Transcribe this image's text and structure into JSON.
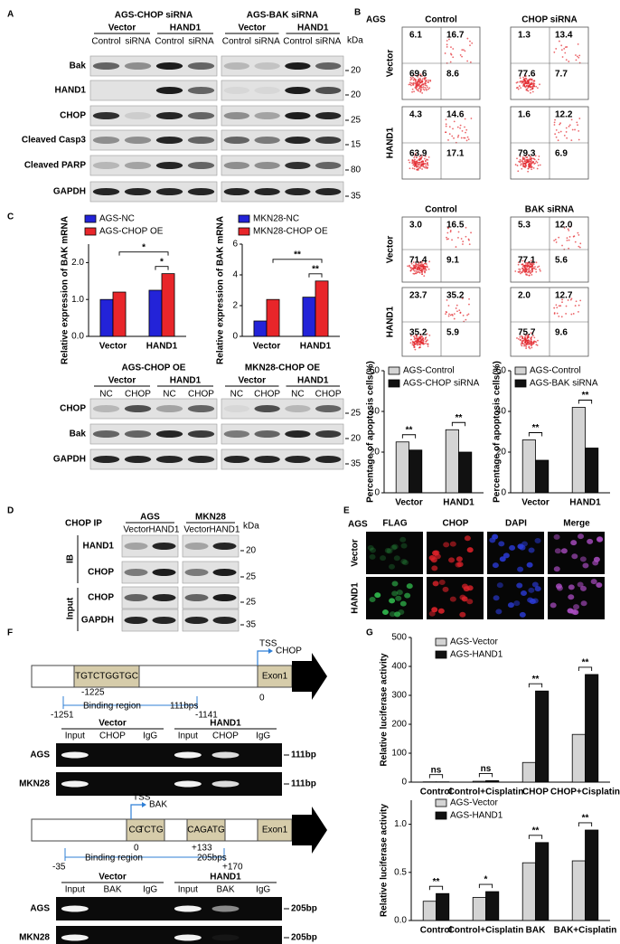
{
  "panel_a": {
    "letter": "A",
    "groups": [
      {
        "title": "AGS-CHOP siRNA",
        "conditions": [
          "Vector",
          "HAND1"
        ],
        "lanes": [
          "Control",
          "siRNA",
          "Control",
          "siRNA"
        ]
      },
      {
        "title": "AGS-BAK siRNA",
        "conditions": [
          "Vector",
          "HAND1"
        ],
        "lanes": [
          "Control",
          "siRNA",
          "Control",
          "siRNA"
        ]
      }
    ],
    "rows": [
      "Bak",
      "HAND1",
      "CHOP",
      "Cleaved Casp3",
      "Cleaved PARP",
      "GAPDH"
    ],
    "unit": "kDa",
    "markers": [
      20,
      20,
      25,
      15,
      80,
      35
    ]
  },
  "panel_b": {
    "letter": "B",
    "cell": "AGS",
    "blocks": [
      {
        "columns": [
          "Control",
          "CHOP siRNA"
        ],
        "rows": [
          "Vector",
          "HAND1"
        ],
        "plots": [
          [
            [
              "6.1",
              "16.7",
              "69.6",
              "8.6"
            ],
            [
              "1.3",
              "13.4",
              "77.6",
              "7.7"
            ]
          ],
          [
            [
              "4.3",
              "14.6",
              "63.9",
              "17.1"
            ],
            [
              "1.6",
              "12.2",
              "79.3",
              "6.9"
            ]
          ]
        ]
      },
      {
        "columns": [
          "Control",
          "BAK siRNA"
        ],
        "rows": [
          "Vector",
          "HAND1"
        ],
        "plots": [
          [
            [
              "3.0",
              "16.5",
              "71.4",
              "9.1"
            ],
            [
              "5.3",
              "12.0",
              "77.1",
              "5.6"
            ]
          ],
          [
            [
              "23.7",
              "35.2",
              "35.2",
              "5.9"
            ],
            [
              "2.0",
              "12.7",
              "75.7",
              "9.6"
            ]
          ]
        ]
      }
    ]
  },
  "panel_c": {
    "letter": "C",
    "blot": {
      "groups": [
        {
          "title": "AGS-CHOP OE",
          "conditions": [
            "Vector",
            "HAND1"
          ],
          "lanes": [
            "NC",
            "CHOP",
            "NC",
            "CHOP"
          ]
        },
        {
          "title": "MKN28-CHOP OE",
          "conditions": [
            "Vector",
            "HAND1"
          ],
          "lanes": [
            "NC",
            "CHOP",
            "NC",
            "CHOP"
          ]
        }
      ],
      "rows": [
        "CHOP",
        "Bak",
        "GAPDH"
      ],
      "markers": [
        25,
        20,
        35
      ]
    }
  },
  "panel_d": {
    "letter": "D",
    "ip": "CHOP IP",
    "groups": [
      {
        "title": "AGS",
        "lanes": [
          "Vector",
          "HAND1"
        ]
      },
      {
        "title": "MKN28",
        "lanes": [
          "Vector",
          "HAND1"
        ]
      }
    ],
    "unit": "kDa",
    "sections": [
      "IB",
      "Input"
    ],
    "rows": [
      "HAND1",
      "CHOP",
      "CHOP",
      "GAPDH"
    ],
    "markers": [
      20,
      25,
      25,
      35
    ]
  },
  "panel_e": {
    "letter": "E",
    "cell": "AGS",
    "channels": [
      "FLAG",
      "CHOP",
      "DAPI",
      "Merge"
    ],
    "rows": [
      "Vector",
      "HAND1"
    ]
  },
  "panel_f": {
    "letter": "F",
    "chop": {
      "sequence": "TGTCTGGTGC",
      "seq_pos": -1225,
      "tss": "TSS",
      "gene": "CHOP",
      "exon": "Exon1",
      "tss_pos": 0,
      "region": "Binding region",
      "size": "111bps",
      "start": -1251,
      "end": -1141,
      "gel": {
        "conditions": [
          "Vector",
          "HAND1"
        ],
        "lanes": [
          "Input",
          "CHOP",
          "IgG",
          "Input",
          "CHOP",
          "IgG"
        ],
        "rows": [
          "AGS",
          "MKN28"
        ],
        "bands": [
          "111bp",
          "111bp"
        ]
      }
    },
    "bak": {
      "tss": "TSS",
      "gene": "BAK",
      "seq1_highlight": "CG",
      "seq1_rest": "TCTG",
      "sequence2": "CAGATG",
      "tss_pos": 0,
      "seq2_pos": "+133",
      "exon": "Exon1",
      "start": -35,
      "region": "Binding region",
      "size": "205bps",
      "end": "+170",
      "gel": {
        "conditions": [
          "Vector",
          "HAND1"
        ],
        "lanes": [
          "Input",
          "BAK",
          "IgG",
          "Input",
          "BAK",
          "IgG"
        ],
        "rows": [
          "AGS",
          "MKN28"
        ],
        "bands": [
          "205bp",
          "205bp"
        ]
      }
    }
  },
  "panel_g": {
    "letter": "G"
  },
  "chart_data": [
    {
      "type": "bar",
      "y_label": "Percentage of apoptosis cells(%)",
      "categories": [
        "Vector",
        "HAND1"
      ],
      "series": [
        {
          "name": "AGS-Control",
          "color": "#d4d4d4",
          "values": [
            25,
            31
          ]
        },
        {
          "name": "AGS-CHOP siRNA",
          "color": "#111111",
          "values": [
            21,
            20
          ]
        }
      ],
      "ylim": [
        0,
        60
      ],
      "yticks": [
        0,
        20,
        40,
        60
      ],
      "annotations": [
        "**",
        "**"
      ]
    },
    {
      "type": "bar",
      "y_label": "Percentage of apoptosis cells(%)",
      "categories": [
        "Vector",
        "HAND1"
      ],
      "series": [
        {
          "name": "AGS-Control",
          "color": "#d4d4d4",
          "values": [
            26,
            42
          ]
        },
        {
          "name": "AGS-BAK siRNA",
          "color": "#111111",
          "values": [
            16,
            22
          ]
        }
      ],
      "ylim": [
        0,
        60
      ],
      "yticks": [
        0,
        20,
        40,
        60
      ],
      "annotations": [
        "**",
        "**"
      ]
    },
    {
      "type": "bar",
      "y_label": "Relative expression of BAK mRNA",
      "categories": [
        "Vector",
        "HAND1"
      ],
      "series": [
        {
          "name": "AGS-NC",
          "color": "#2323d8",
          "values": [
            1.0,
            1.25
          ]
        },
        {
          "name": "AGS-CHOP OE",
          "color": "#e8262a",
          "values": [
            1.2,
            1.7
          ]
        }
      ],
      "ylim": [
        0,
        2.5
      ],
      "yticks": [
        {
          "value": 0,
          "label": "0.0"
        },
        {
          "value": 1,
          "label": "1.0"
        },
        {
          "value": 2,
          "label": "2.0"
        }
      ],
      "annotations": [
        "*",
        "*"
      ]
    },
    {
      "type": "bar",
      "y_label": "Relative expression of BAK mRNA",
      "categories": [
        "Vector",
        "HAND1"
      ],
      "series": [
        {
          "name": "MKN28-NC",
          "color": "#2323d8",
          "values": [
            1.0,
            2.55
          ]
        },
        {
          "name": "MKN28-CHOP OE",
          "color": "#e8262a",
          "values": [
            2.4,
            3.6
          ]
        }
      ],
      "ylim": [
        0,
        6
      ],
      "yticks": [
        0,
        2,
        4,
        6
      ],
      "annotations": [
        "**",
        "**"
      ]
    },
    {
      "type": "bar",
      "y_label": "Relative luciferase activity",
      "categories": [
        "Control",
        "Control+Cisplatin",
        "CHOP",
        "CHOP+Cisplatin"
      ],
      "series": [
        {
          "name": "AGS-Vector",
          "color": "#d4d4d4",
          "values": [
            1,
            3,
            68,
            165
          ]
        },
        {
          "name": "AGS-HAND1",
          "color": "#111111",
          "values": [
            1,
            5,
            315,
            372
          ]
        }
      ],
      "ylim": [
        0,
        500
      ],
      "yticks": [
        0,
        100,
        200,
        300,
        400,
        500
      ],
      "annotations": [
        "ns",
        "ns",
        "**",
        "**"
      ]
    },
    {
      "type": "bar",
      "y_label": "Relative luciferase activity",
      "categories": [
        "Control",
        "Control+Cisplatin",
        "BAK",
        "BAK+Cisplatin"
      ],
      "series": [
        {
          "name": "AGS-Vector",
          "color": "#d4d4d4",
          "values": [
            0.2,
            0.24,
            0.6,
            0.62
          ]
        },
        {
          "name": "AGS-HAND1",
          "color": "#111111",
          "values": [
            0.28,
            0.3,
            0.81,
            0.94
          ]
        }
      ],
      "ylim": [
        0,
        1.25
      ],
      "yticks": [
        {
          "value": 0,
          "label": "0.0"
        },
        0.5,
        {
          "value": 1,
          "label": "1.0"
        }
      ],
      "annotations": [
        "**",
        "*",
        "**",
        "**"
      ]
    }
  ]
}
